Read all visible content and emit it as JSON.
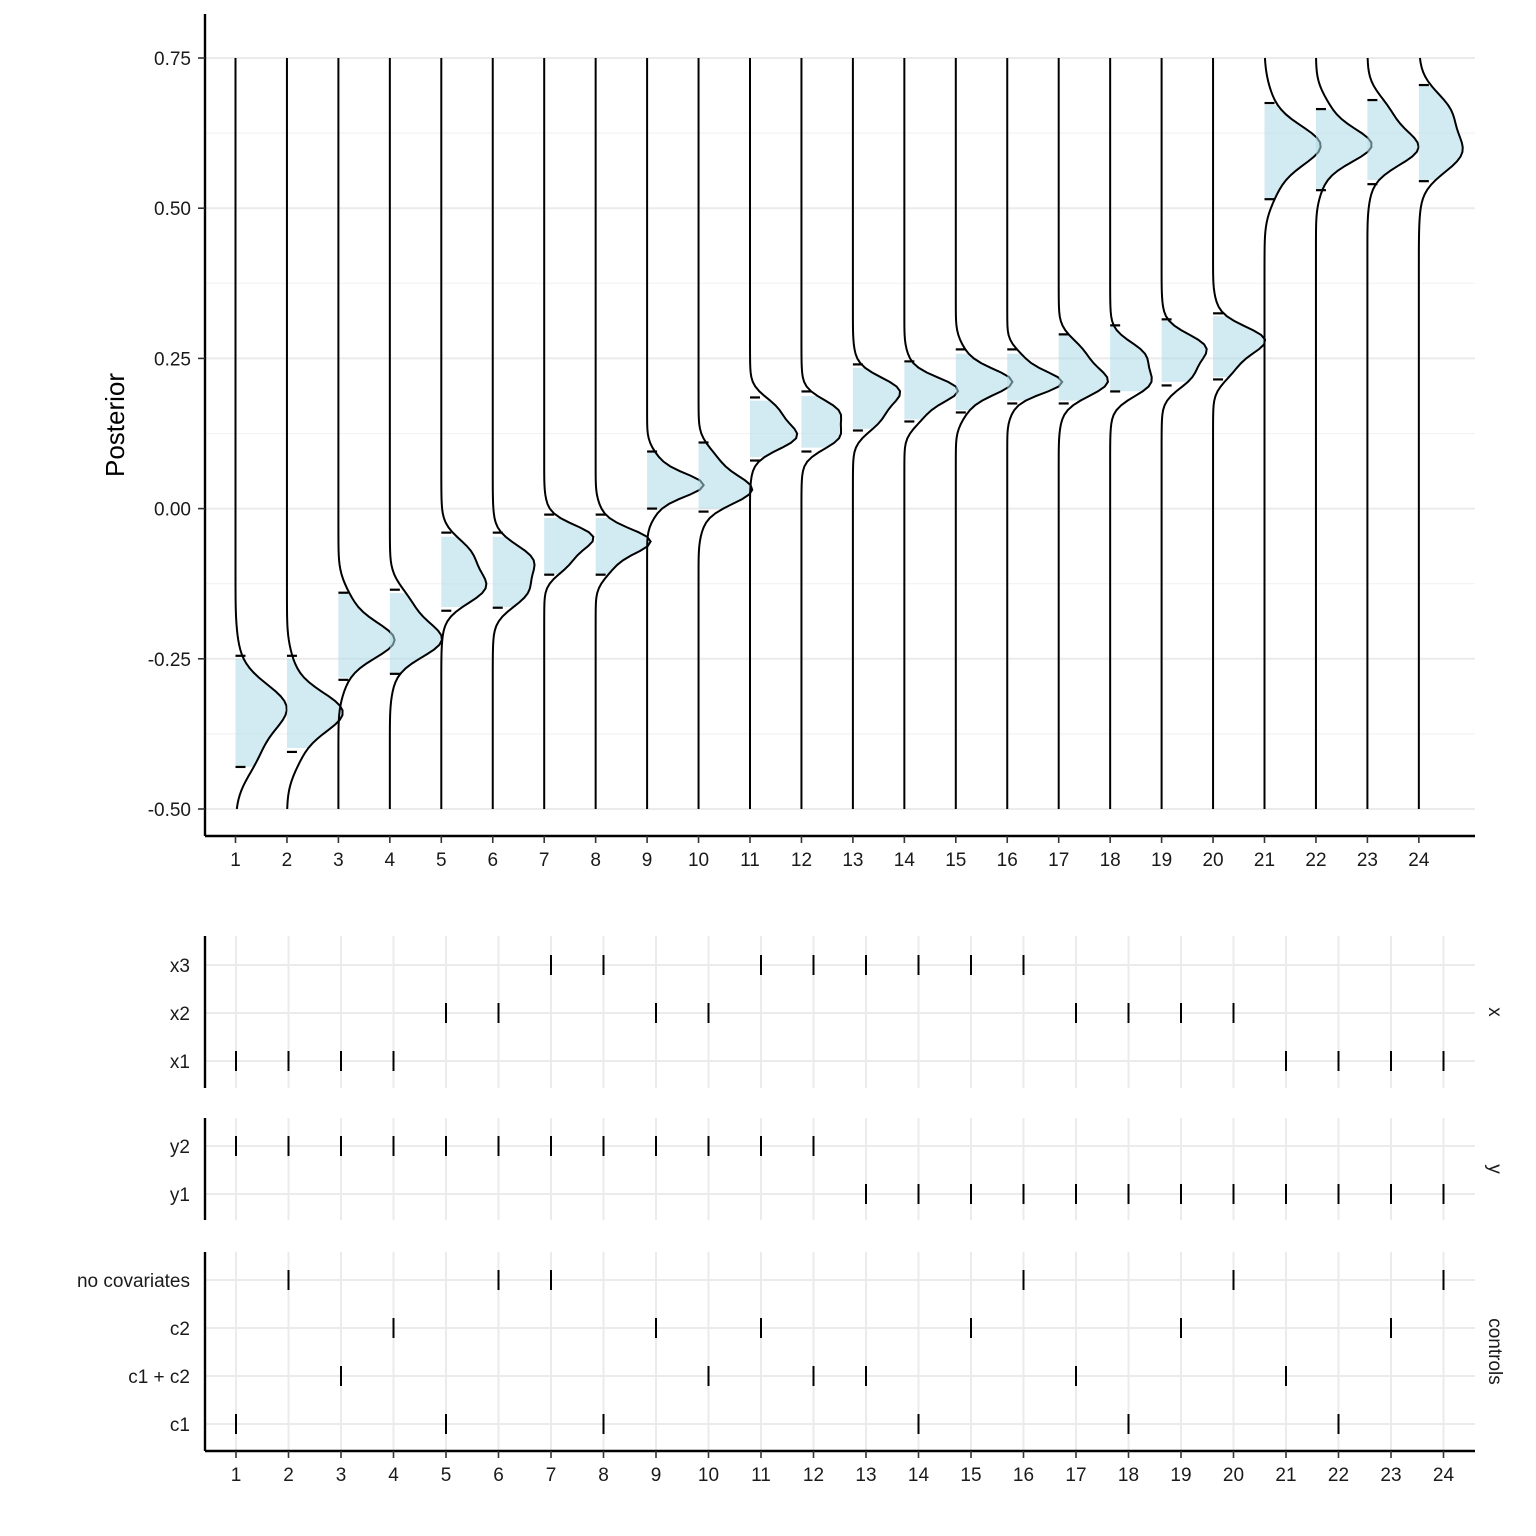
{
  "chart_data": [
    {
      "type": "ridgeline",
      "ylabel": "Posterior",
      "xlabel": "",
      "ylim": [
        -0.5,
        0.75
      ],
      "y_ticks": [
        "-0.50",
        "-0.25",
        "0.00",
        "0.25",
        "0.50",
        "0.75"
      ],
      "y_tick_values": [
        -0.5,
        -0.25,
        0,
        0.25,
        0.5,
        0.75
      ],
      "x": [
        "1",
        "2",
        "3",
        "4",
        "5",
        "6",
        "7",
        "8",
        "9",
        "10",
        "11",
        "12",
        "13",
        "14",
        "15",
        "16",
        "17",
        "18",
        "19",
        "20",
        "21",
        "22",
        "23",
        "24"
      ],
      "colors": {
        "fill": "#add8e6",
        "line": "#000000",
        "grid": "#ebebeb"
      },
      "grid": true,
      "distributions": [
        {
          "spec": "1",
          "mode": -0.35,
          "lower": -0.43,
          "upper": -0.245
        },
        {
          "spec": "2",
          "mode": -0.345,
          "lower": -0.405,
          "upper": -0.245
        },
        {
          "spec": "3",
          "mode": -0.215,
          "lower": -0.285,
          "upper": -0.14
        },
        {
          "spec": "4",
          "mode": -0.205,
          "lower": -0.275,
          "upper": -0.135
        },
        {
          "spec": "5",
          "mode": -0.11,
          "lower": -0.17,
          "upper": -0.04
        },
        {
          "spec": "6",
          "mode": -0.11,
          "lower": -0.165,
          "upper": -0.04
        },
        {
          "spec": "7",
          "mode": -0.06,
          "lower": -0.11,
          "upper": -0.01
        },
        {
          "spec": "8",
          "mode": -0.06,
          "lower": -0.11,
          "upper": -0.01
        },
        {
          "spec": "9",
          "mode": 0.04,
          "lower": 0.0,
          "upper": 0.095
        },
        {
          "spec": "10",
          "mode": 0.04,
          "lower": -0.005,
          "upper": 0.11
        },
        {
          "spec": "11",
          "mode": 0.135,
          "lower": 0.08,
          "upper": 0.185
        },
        {
          "spec": "12",
          "mode": 0.14,
          "lower": 0.095,
          "upper": 0.195
        },
        {
          "spec": "13",
          "mode": 0.18,
          "lower": 0.13,
          "upper": 0.24
        },
        {
          "spec": "14",
          "mode": 0.19,
          "lower": 0.145,
          "upper": 0.245
        },
        {
          "spec": "15",
          "mode": 0.21,
          "lower": 0.16,
          "upper": 0.265
        },
        {
          "spec": "16",
          "mode": 0.215,
          "lower": 0.175,
          "upper": 0.265
        },
        {
          "spec": "17",
          "mode": 0.225,
          "lower": 0.175,
          "upper": 0.29
        },
        {
          "spec": "18",
          "mode": 0.23,
          "lower": 0.195,
          "upper": 0.305
        },
        {
          "spec": "19",
          "mode": 0.25,
          "lower": 0.205,
          "upper": 0.315
        },
        {
          "spec": "20",
          "mode": 0.27,
          "lower": 0.215,
          "upper": 0.325
        },
        {
          "spec": "21",
          "mode": 0.6,
          "lower": 0.515,
          "upper": 0.675
        },
        {
          "spec": "22",
          "mode": 0.61,
          "lower": 0.53,
          "upper": 0.665
        },
        {
          "spec": "23",
          "mode": 0.615,
          "lower": 0.54,
          "upper": 0.68
        },
        {
          "spec": "24",
          "mode": 0.62,
          "lower": 0.545,
          "upper": 0.705
        }
      ]
    },
    {
      "type": "specification-indicator",
      "x": [
        "1",
        "2",
        "3",
        "4",
        "5",
        "6",
        "7",
        "8",
        "9",
        "10",
        "11",
        "12",
        "13",
        "14",
        "15",
        "16",
        "17",
        "18",
        "19",
        "20",
        "21",
        "22",
        "23",
        "24"
      ],
      "panels": [
        {
          "strip": "x",
          "rows": [
            {
              "label": "x3",
              "specs": [
                7,
                8,
                11,
                12,
                13,
                14,
                15,
                16
              ]
            },
            {
              "label": "x2",
              "specs": [
                5,
                6,
                9,
                10,
                17,
                18,
                19,
                20
              ]
            },
            {
              "label": "x1",
              "specs": [
                1,
                2,
                3,
                4,
                21,
                22,
                23,
                24
              ]
            }
          ]
        },
        {
          "strip": "y",
          "rows": [
            {
              "label": "y2",
              "specs": [
                1,
                2,
                3,
                4,
                5,
                6,
                7,
                8,
                9,
                10,
                11,
                12
              ]
            },
            {
              "label": "y1",
              "specs": [
                13,
                14,
                15,
                16,
                17,
                18,
                19,
                20,
                21,
                22,
                23,
                24
              ]
            }
          ]
        },
        {
          "strip": "controls",
          "rows": [
            {
              "label": "no covariates",
              "specs": [
                2,
                6,
                7,
                16,
                20,
                24
              ]
            },
            {
              "label": "c2",
              "specs": [
                4,
                9,
                11,
                15,
                19,
                23
              ]
            },
            {
              "label": "c1 + c2",
              "specs": [
                3,
                10,
                12,
                13,
                17,
                21
              ]
            },
            {
              "label": "c1",
              "specs": [
                1,
                5,
                8,
                14,
                18,
                22
              ]
            }
          ]
        }
      ]
    }
  ]
}
